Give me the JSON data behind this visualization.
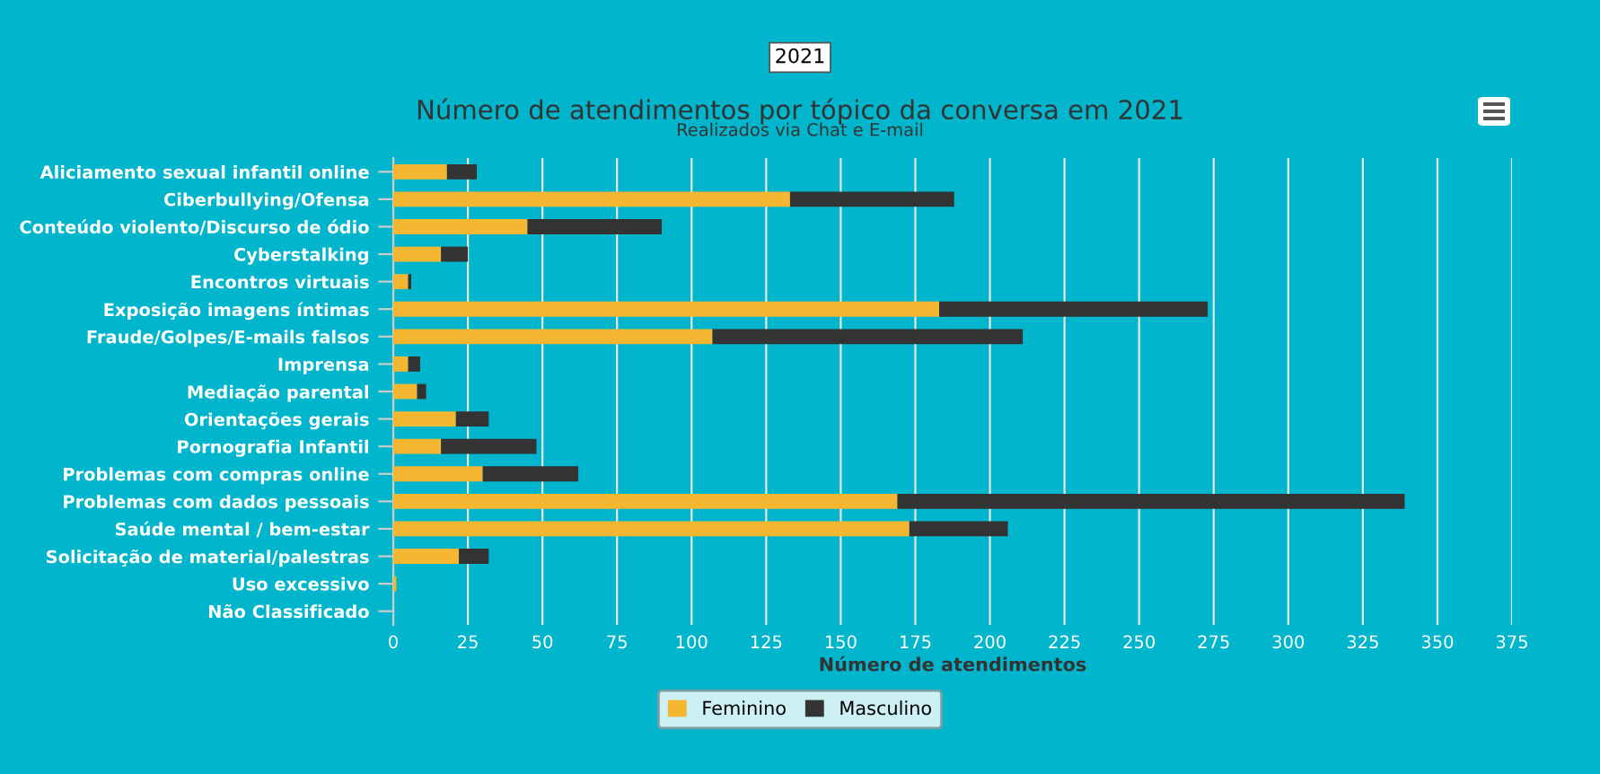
{
  "chart_data": {
    "type": "bar",
    "orientation": "horizontal",
    "stacked": true,
    "title": "Número de atendimentos por tópico da conversa em 2021",
    "subtitle": "Realizados via Chat e E-mail",
    "xlabel": "Número de atendimentos",
    "annotations": [
      "2021"
    ],
    "categories": [
      "Aliciamento sexual infantil online",
      "Ciberbullying/Ofensa",
      "Conteúdo violento/Discurso de ódio",
      "Cyberstalking",
      "Encontros virtuais",
      "Exposição imagens íntimas",
      "Fraude/Golpes/E-mails falsos",
      "Imprensa",
      "Mediação parental",
      "Orientações gerais",
      "Pornografia Infantil",
      "Problemas com compras online",
      "Problemas com dados pessoais",
      "Saúde mental / bem-estar",
      "Solicitação de material/palestras",
      "Uso excessivo",
      "Não Classificado"
    ],
    "series": [
      {
        "name": "Feminino",
        "color": "#f5b731",
        "values": [
          18,
          133,
          45,
          16,
          5,
          183,
          107,
          5,
          8,
          21,
          16,
          30,
          169,
          173,
          22,
          1,
          0
        ]
      },
      {
        "name": "Masculino",
        "color": "#333333",
        "values": [
          10,
          55,
          45,
          9,
          1,
          90,
          104,
          4,
          3,
          11,
          32,
          32,
          170,
          33,
          10,
          0,
          0
        ]
      }
    ],
    "xlim": [
      0,
      375
    ],
    "xticks": [
      0,
      25,
      50,
      75,
      100,
      125,
      150,
      175,
      200,
      225,
      250,
      275,
      300,
      325,
      350,
      375
    ],
    "grid": "x",
    "legend": "bottom"
  }
}
